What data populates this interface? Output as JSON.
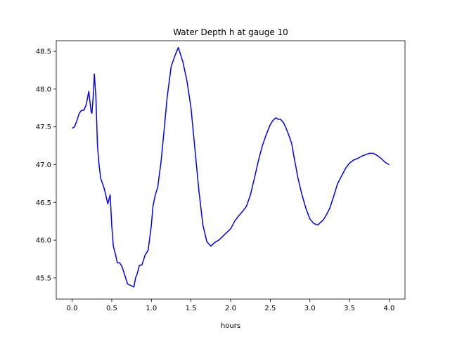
{
  "chart_data": {
    "type": "line",
    "title": "Water Depth h at gauge 10",
    "xlabel": "hours",
    "ylabel": "",
    "xlim": [
      -0.2,
      4.2
    ],
    "ylim": [
      45.22,
      48.64
    ],
    "xticks": [
      0.0,
      0.5,
      1.0,
      1.5,
      2.0,
      2.5,
      3.0,
      3.5,
      4.0
    ],
    "xtick_labels": [
      "0.0",
      "0.5",
      "1.0",
      "1.5",
      "2.0",
      "2.5",
      "3.0",
      "3.5",
      "4.0"
    ],
    "yticks": [
      45.5,
      46.0,
      46.5,
      47.0,
      47.5,
      48.0,
      48.5
    ],
    "ytick_labels": [
      "45.5",
      "46.0",
      "46.5",
      "47.0",
      "47.5",
      "48.0",
      "48.5"
    ],
    "grid": false,
    "series": [
      {
        "color": "#0000ff",
        "x": [
          0.0,
          0.03,
          0.06,
          0.09,
          0.12,
          0.15,
          0.18,
          0.21,
          0.24,
          0.25,
          0.27,
          0.28,
          0.3,
          0.32,
          0.34,
          0.36,
          0.4,
          0.42,
          0.45,
          0.48,
          0.5,
          0.52,
          0.55,
          0.57,
          0.6,
          0.63,
          0.66,
          0.7,
          0.74,
          0.78,
          0.8,
          0.82,
          0.85,
          0.88,
          0.92,
          0.96,
          1.0,
          1.02,
          1.05,
          1.08,
          1.12,
          1.16,
          1.2,
          1.25,
          1.3,
          1.34,
          1.37,
          1.4,
          1.45,
          1.5,
          1.55,
          1.6,
          1.65,
          1.7,
          1.75,
          1.8,
          1.85,
          1.9,
          1.93,
          1.97,
          2.0,
          2.05,
          2.1,
          2.15,
          2.2,
          2.25,
          2.3,
          2.35,
          2.4,
          2.45,
          2.5,
          2.53,
          2.57,
          2.6,
          2.63,
          2.67,
          2.7,
          2.73,
          2.77,
          2.8,
          2.85,
          2.9,
          2.95,
          3.0,
          3.05,
          3.1,
          3.13,
          3.17,
          3.2,
          3.25,
          3.3,
          3.35,
          3.4,
          3.45,
          3.5,
          3.55,
          3.6,
          3.65,
          3.7,
          3.75,
          3.8,
          3.85,
          3.9,
          3.95,
          4.0
        ],
        "y": [
          47.48,
          47.5,
          47.58,
          47.68,
          47.72,
          47.72,
          47.8,
          47.97,
          47.7,
          47.68,
          47.95,
          48.2,
          47.9,
          47.25,
          47.0,
          46.82,
          46.7,
          46.62,
          46.48,
          46.6,
          46.2,
          45.92,
          45.8,
          45.7,
          45.7,
          45.65,
          45.55,
          45.42,
          45.4,
          45.38,
          45.5,
          45.55,
          45.67,
          45.67,
          45.8,
          45.87,
          46.2,
          46.45,
          46.6,
          46.7,
          47.02,
          47.45,
          47.9,
          48.3,
          48.45,
          48.55,
          48.45,
          48.35,
          48.1,
          47.75,
          47.2,
          46.65,
          46.2,
          45.98,
          45.92,
          45.97,
          46.0,
          46.05,
          46.08,
          46.12,
          46.15,
          46.25,
          46.32,
          46.38,
          46.45,
          46.6,
          46.82,
          47.05,
          47.25,
          47.4,
          47.53,
          47.58,
          47.62,
          47.6,
          47.6,
          47.55,
          47.48,
          47.4,
          47.28,
          47.1,
          46.82,
          46.6,
          46.42,
          46.28,
          46.22,
          46.2,
          46.23,
          46.27,
          46.32,
          46.42,
          46.58,
          46.75,
          46.85,
          46.95,
          47.02,
          47.06,
          47.08,
          47.11,
          47.13,
          47.15,
          47.15,
          47.12,
          47.08,
          47.03,
          47.0
        ]
      }
    ]
  }
}
